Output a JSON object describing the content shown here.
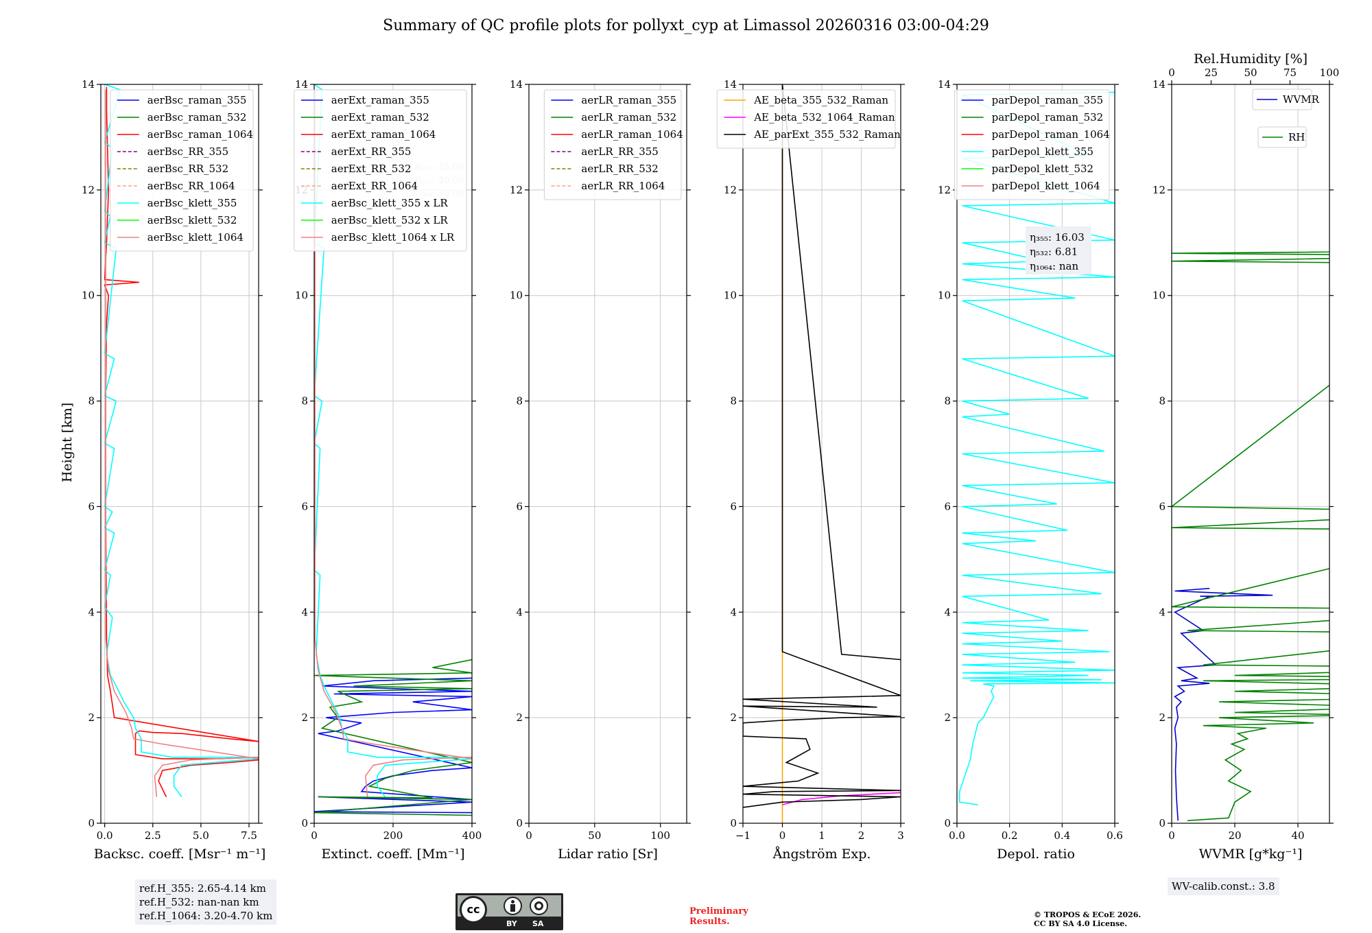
{
  "figure_title": "Summary of QC profile plots for pollyxt_cyp at Limassol 20260316 03:00-04:29",
  "y_label": "Height [km]",
  "colors": {
    "raman_355": "#0000ff",
    "raman_532": "#008000",
    "raman_1064": "#ff0000",
    "rr_355": "#800080",
    "rr_532": "#808000",
    "rr_1064": "#ffa07a",
    "klett_355": "#00ffff",
    "klett_532": "#00ff00",
    "klett_1064": "#f08080",
    "ae1": "#ffa500",
    "ae2": "#ff00ff",
    "ae3": "#000000",
    "wvmr": "#0000cd",
    "rh": "#008000"
  },
  "chart_data": [
    {
      "id": "backscatter",
      "type": "line",
      "xlabel": "Backsc. coeff. [Msr⁻¹ m⁻¹]",
      "ylabel": "Height [km]",
      "xlim": [
        -0.2,
        8
      ],
      "ylim": [
        0,
        14
      ],
      "xticks": [
        0,
        2.5,
        5,
        7.5
      ],
      "xticklabels": [
        "0.0",
        "2.5",
        "5.0",
        "7.5"
      ],
      "yticks": [
        0,
        2,
        4,
        6,
        8,
        10,
        12,
        14
      ],
      "legend": {
        "position": "top-right",
        "entries": [
          "aerBsc_raman_355",
          "aerBsc_raman_532",
          "aerBsc_raman_1064",
          "aerBsc_RR_355",
          "aerBsc_RR_532",
          "aerBsc_RR_1064",
          "aerBsc_klett_355",
          "aerBsc_klett_532",
          "aerBsc_klett_1064"
        ]
      },
      "series": [
        {
          "name": "aerBsc_raman_1064",
          "x": [
            3.2,
            2.8,
            3.0,
            4.5,
            6.5,
            8.0,
            8.0,
            6.0,
            3.0,
            1.6,
            1.6,
            1.8,
            2.5,
            4.0,
            6.5,
            8.0,
            0.5,
            0.3,
            0.15,
            0.1,
            0.08,
            0.05,
            0.05,
            0.1,
            0.2,
            0.0,
            1.8,
            0.0,
            0.1,
            0.2,
            0.1,
            0.1
          ],
          "y": [
            0.5,
            0.8,
            1.0,
            1.1,
            1.15,
            1.2,
            1.25,
            1.22,
            1.22,
            1.3,
            1.7,
            1.75,
            1.72,
            1.7,
            1.6,
            1.55,
            2.0,
            2.5,
            2.8,
            3.5,
            4.5,
            6.0,
            8.0,
            9.5,
            10.0,
            10.2,
            10.25,
            10.3,
            11.0,
            12.0,
            13.5,
            13.95
          ]
        },
        {
          "name": "aerBsc_klett_355",
          "x": [
            4.0,
            3.6,
            3.6,
            4.0,
            8.0,
            8.0,
            3.5,
            1.9,
            1.9,
            1.6,
            1.5,
            1.0,
            0.6,
            0.3,
            0.1,
            0.4,
            0.0,
            0.3,
            0.0,
            0.5,
            0.0,
            0.4,
            0.0,
            0.5,
            0.0,
            0.6,
            0.0,
            0.5,
            0.0,
            0.6,
            0.0,
            0.3,
            0.0,
            0.4,
            0.0,
            0.8,
            0.0
          ],
          "y": [
            0.5,
            0.7,
            0.9,
            1.1,
            1.22,
            1.25,
            1.25,
            1.35,
            1.6,
            1.8,
            2.0,
            2.3,
            2.6,
            2.8,
            3.2,
            3.9,
            4.1,
            4.7,
            4.8,
            5.5,
            5.6,
            5.9,
            6.0,
            7.1,
            7.2,
            8.0,
            8.1,
            8.8,
            8.9,
            10.9,
            11.0,
            11.5,
            11.6,
            12.8,
            12.9,
            13.9,
            14.0
          ]
        },
        {
          "name": "aerBsc_klett_1064",
          "x": [
            2.7,
            2.6,
            3.0,
            4.5,
            8.0,
            8.0,
            3.0,
            1.5,
            1.4,
            1.1,
            0.5,
            0.2,
            0.05,
            0.05
          ],
          "y": [
            0.5,
            0.9,
            1.1,
            1.2,
            1.25,
            1.22,
            1.5,
            1.6,
            1.8,
            2.1,
            2.5,
            2.9,
            3.5,
            13.9
          ]
        }
      ]
    },
    {
      "id": "extinction",
      "type": "line",
      "xlabel": "Extinct. coeff. [Mm⁻¹]",
      "ylabel": "",
      "xlim": [
        0,
        400
      ],
      "ylim": [
        0,
        14
      ],
      "xticks": [
        0,
        200,
        400
      ],
      "xticklabels": [
        "0",
        "200",
        "400"
      ],
      "yticks": [
        0,
        2,
        4,
        6,
        8,
        10,
        12,
        14
      ],
      "legend": {
        "position": "top-right",
        "entries": [
          "aerExt_raman_355",
          "aerExt_raman_532",
          "aerExt_raman_1064",
          "aerExt_RR_355",
          "aerExt_RR_532",
          "aerExt_RR_1064",
          "aerBsc_klett_355 x LR",
          "aerBsc_klett_532 x LR",
          "aerBsc_klett_1064 x LR"
        ]
      },
      "lr_labels": [
        "LR₃₅₅: 45.00",
        "LR₅₃₂: 40.00",
        "LR₁₀₆₄: 50.00"
      ],
      "series": [
        {
          "name": "aerExt_raman_355",
          "x": [
            400,
            0,
            400,
            10,
            400,
            120,
            130,
            150,
            200,
            300,
            400,
            10,
            60,
            120,
            30,
            200,
            400,
            250,
            400,
            50,
            400,
            20,
            150,
            400
          ],
          "y": [
            0.2,
            0.22,
            0.4,
            0.5,
            0.45,
            0.6,
            0.7,
            0.8,
            0.9,
            1.0,
            1.05,
            1.7,
            1.75,
            1.9,
            2.0,
            2.1,
            2.15,
            2.3,
            2.4,
            2.45,
            2.5,
            2.6,
            2.7,
            2.75
          ]
        },
        {
          "name": "aerExt_raman_532",
          "x": [
            400,
            0,
            400,
            10,
            300,
            140,
            180,
            250,
            400,
            20,
            40,
            60,
            40,
            120,
            60,
            400,
            100,
            400,
            0,
            400,
            300,
            400
          ],
          "y": [
            0.15,
            0.2,
            0.45,
            0.5,
            0.48,
            0.7,
            0.85,
            1.0,
            1.15,
            1.8,
            1.9,
            2.0,
            2.2,
            2.3,
            2.5,
            2.55,
            2.6,
            2.7,
            2.8,
            2.85,
            2.95,
            3.1
          ]
        },
        {
          "name": "aerBsc_klett_355 x LR",
          "x": [
            180,
            160,
            160,
            180,
            400,
            400,
            160,
            85,
            85,
            70,
            65,
            45,
            25,
            15,
            5,
            15,
            0,
            15,
            0,
            20,
            0,
            25,
            0,
            20,
            0
          ],
          "y": [
            0.5,
            0.7,
            0.9,
            1.1,
            1.22,
            1.25,
            1.25,
            1.35,
            1.6,
            1.8,
            2.0,
            2.3,
            2.6,
            2.8,
            3.2,
            4.7,
            4.8,
            7.1,
            7.2,
            8.0,
            8.1,
            10.9,
            11.0,
            13.9,
            14.0
          ]
        },
        {
          "name": "aerBsc_klett_1064 x LR",
          "x": [
            135,
            130,
            150,
            225,
            400,
            400,
            150,
            75,
            70,
            55,
            25,
            10,
            2,
            2
          ],
          "y": [
            0.5,
            0.9,
            1.1,
            1.2,
            1.25,
            1.22,
            1.5,
            1.6,
            1.8,
            2.1,
            2.5,
            2.9,
            3.5,
            13.9
          ]
        }
      ]
    },
    {
      "id": "lidar_ratio",
      "type": "line",
      "xlabel": "Lidar ratio [Sr]",
      "ylabel": "",
      "xlim": [
        0,
        120
      ],
      "ylim": [
        0,
        14
      ],
      "xticks": [
        0,
        50,
        100
      ],
      "xticklabels": [
        "0",
        "50",
        "100"
      ],
      "yticks": [
        0,
        2,
        4,
        6,
        8,
        10,
        12,
        14
      ],
      "legend": {
        "position": "top-right",
        "entries": [
          "aerLR_raman_355",
          "aerLR_raman_532",
          "aerLR_raman_1064",
          "aerLR_RR_355",
          "aerLR_RR_532",
          "aerLR_RR_1064"
        ]
      },
      "series": []
    },
    {
      "id": "angstrom",
      "type": "line",
      "xlabel": "Ångström Exp.",
      "ylabel": "",
      "xlim": [
        -1,
        3
      ],
      "ylim": [
        0,
        14
      ],
      "xticks": [
        -1,
        0,
        1,
        2,
        3
      ],
      "xticklabels": [
        "−1",
        "0",
        "1",
        "2",
        "3"
      ],
      "yticks": [
        0,
        2,
        4,
        6,
        8,
        10,
        12,
        14
      ],
      "legend": {
        "position": "top-right",
        "entries": [
          "AE_beta_355_532_Raman",
          "AE_beta_532_1064_Raman",
          "AE_parExt_355_532_Raman"
        ]
      },
      "series": [
        {
          "name": "AE_beta_355_532_Raman",
          "x": [
            0,
            0
          ],
          "y": [
            0,
            14
          ]
        },
        {
          "name": "AE_beta_532_1064_Raman",
          "x": [
            0,
            0.5,
            1.5,
            3.0
          ],
          "y": [
            0.35,
            0.45,
            0.52,
            0.58
          ]
        },
        {
          "name": "AE_parExt_355_532_Raman",
          "x": [
            -1,
            0,
            2,
            3,
            -1,
            -0.2,
            3,
            -1,
            0.4,
            0.9,
            0.1,
            0.7,
            0.6,
            -1,
            -1,
            0,
            1.5,
            3,
            -1,
            2.4,
            -1,
            1.9,
            3,
            0,
            0,
            1.5,
            3
          ],
          "y": [
            0.3,
            0.4,
            0.45,
            0.5,
            0.55,
            0.6,
            0.62,
            0.7,
            0.8,
            0.95,
            1.15,
            1.4,
            1.6,
            1.65,
            1.9,
            1.95,
            2.0,
            2.02,
            2.22,
            2.2,
            2.35,
            2.4,
            2.42,
            3.25,
            14,
            3.2,
            3.1
          ]
        }
      ]
    },
    {
      "id": "depolarization",
      "type": "line",
      "xlabel": "Depol. ratio",
      "ylabel": "",
      "xlim": [
        0,
        0.6
      ],
      "ylim": [
        0,
        14
      ],
      "xticks": [
        0,
        0.2,
        0.4,
        0.6
      ],
      "xticklabels": [
        "0.0",
        "0.2",
        "0.4",
        "0.6"
      ],
      "yticks": [
        0,
        2,
        4,
        6,
        8,
        10,
        12,
        14
      ],
      "legend": {
        "position": "top-right",
        "entries": [
          "parDepol_raman_355",
          "parDepol_raman_532",
          "parDepol_raman_1064",
          "parDepol_klett_355",
          "parDepol_klett_532",
          "parDepol_klett_1064"
        ]
      },
      "eta_labels": [
        "η₃₅₅: 16.03",
        "η₅₃₂: 6.81",
        "η₁₀₆₄: nan"
      ],
      "series": [
        {
          "name": "parDepol_klett_355",
          "x": [
            0.08,
            0.01,
            0.01,
            0.03,
            0.05,
            0.06,
            0.07,
            0.08,
            0.1,
            0.12,
            0.14,
            0.13,
            0.14,
            0.12,
            0.1,
            0.6,
            0.05,
            0.55,
            0.02,
            0.5,
            0.02,
            0.6,
            0.02,
            0.45,
            0.02,
            0.58,
            0.02,
            0.4,
            0.02,
            0.5,
            0.02,
            0.35,
            0.02,
            0.55,
            0.02,
            0.6,
            0.02,
            0.3,
            0.02,
            0.42,
            0.02,
            0.38,
            0.02,
            0.6,
            0.02,
            0.56,
            0.02,
            0.2,
            0.02,
            0.5,
            0.02,
            0.6,
            0.02,
            0.45,
            0.02,
            0.6,
            0.02,
            0.33,
            0.02,
            0.6,
            0.02,
            0.6,
            0.02,
            0.5,
            0.02,
            0.6
          ],
          "y": [
            0.35,
            0.4,
            0.6,
            0.9,
            1.2,
            1.5,
            1.7,
            1.9,
            2.0,
            2.2,
            2.4,
            2.5,
            2.6,
            2.62,
            2.64,
            2.66,
            2.7,
            2.72,
            2.75,
            2.8,
            2.85,
            2.9,
            3.0,
            3.05,
            3.2,
            3.25,
            3.4,
            3.45,
            3.6,
            3.65,
            3.8,
            3.85,
            4.3,
            4.35,
            4.7,
            4.75,
            5.3,
            5.35,
            5.5,
            5.55,
            6.0,
            6.05,
            6.4,
            6.45,
            7.0,
            7.05,
            7.7,
            7.75,
            8.0,
            8.05,
            8.8,
            8.85,
            9.9,
            9.95,
            10.3,
            10.35,
            10.6,
            10.65,
            11.0,
            11.05,
            11.7,
            11.75,
            12.6,
            12.65,
            13.8,
            13.85
          ]
        }
      ]
    },
    {
      "id": "wvmr_rh",
      "type": "line",
      "xlabel": "WVMR [g*kg⁻¹]",
      "ylabel": "",
      "xlim": [
        0,
        50
      ],
      "ylim": [
        0,
        14
      ],
      "xticks": [
        0,
        20,
        40
      ],
      "xticklabels": [
        "0",
        "20",
        "40"
      ],
      "yticks": [
        0,
        2,
        4,
        6,
        8,
        10,
        12,
        14
      ],
      "top_axis": {
        "label": "Rel.Humidity [%]",
        "lim": [
          0,
          100
        ],
        "ticks": [
          0,
          25,
          50,
          75,
          100
        ],
        "ticklabels": [
          "0",
          "25",
          "50",
          "75",
          "100"
        ]
      },
      "legend": {
        "position": "top-right",
        "entries": [
          "WVMR",
          "RH"
        ]
      },
      "series": [
        {
          "name": "WVMR",
          "x": [
            2,
            1.5,
            1.2,
            1.5,
            1.0,
            2.0,
            1.5,
            3.0,
            1.0,
            4.0,
            2.0,
            12.0,
            3.0,
            8.0,
            2.0,
            14.0,
            3.0,
            10.0,
            1.0,
            12.0,
            9.0,
            32.0,
            1.0,
            12.0
          ],
          "y": [
            0.05,
            0.5,
            1.0,
            1.5,
            1.8,
            2.0,
            2.2,
            2.3,
            2.4,
            2.5,
            2.6,
            2.65,
            2.7,
            2.75,
            2.95,
            3.0,
            3.6,
            3.65,
            4.0,
            4.3,
            4.3,
            4.32,
            4.4,
            4.45
          ]
        },
        {
          "name": "RH",
          "x": [
            5,
            18,
            20,
            25,
            18,
            22,
            17,
            23,
            19,
            24,
            21,
            30,
            10,
            45,
            15,
            60,
            20,
            70,
            15,
            90,
            20,
            80,
            10,
            100,
            20,
            100,
            10,
            100,
            5,
            100,
            0,
            100,
            0,
            100,
            0,
            100,
            0,
            100,
            0,
            100
          ],
          "y": [
            0.05,
            0.1,
            0.4,
            0.6,
            0.8,
            1.0,
            1.2,
            1.4,
            1.5,
            1.6,
            1.7,
            1.8,
            1.85,
            1.9,
            2.0,
            2.05,
            2.1,
            2.2,
            2.3,
            2.4,
            2.5,
            2.6,
            2.7,
            2.75,
            2.8,
            2.95,
            3.0,
            3.6,
            3.65,
            4.05,
            4.1,
            5.55,
            5.6,
            5.9,
            6.0,
            10.6,
            10.65,
            10.75,
            10.8,
            10.85
          ]
        }
      ]
    }
  ],
  "ref_box": {
    "line1": "ref.H_355: 2.65-4.14 km",
    "line2": "ref.H_532: nan-nan km",
    "line3": "ref.H_1064: 3.20-4.70 km"
  },
  "wv_box": {
    "text": "WV-calib.const.: 3.8"
  },
  "license_badge": {
    "cc": "cc",
    "by": "BY",
    "sa": "SA"
  },
  "preliminary": {
    "line1": "Preliminary",
    "line2": "Results."
  },
  "copyright": {
    "line1": "© TROPOS & ECoE 2026.",
    "line2": "CC BY SA 4.0 License."
  }
}
